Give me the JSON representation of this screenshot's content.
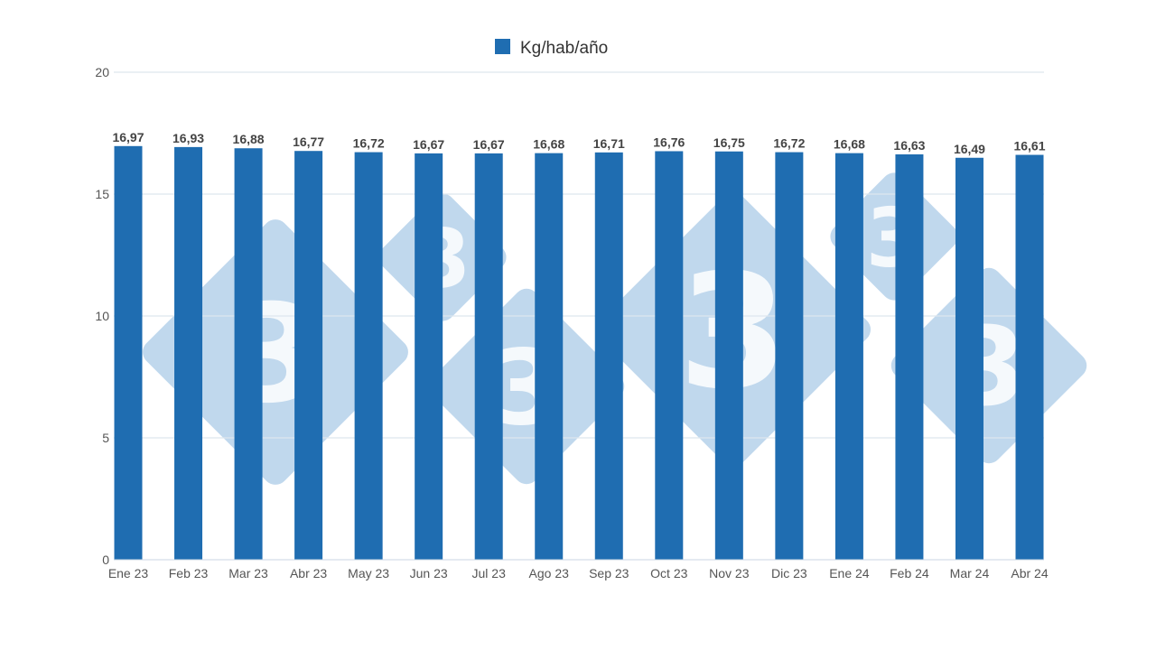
{
  "chart_data": {
    "type": "bar",
    "categories": [
      "Ene 23",
      "Feb 23",
      "Mar 23",
      "Abr 23",
      "May 23",
      "Jun 23",
      "Jul 23",
      "Ago 23",
      "Sep 23",
      "Oct 23",
      "Nov 23",
      "Dic 23",
      "Ene 24",
      "Feb 24",
      "Mar 24",
      "Abr 24"
    ],
    "series": [
      {
        "name": "Kg/hab/año",
        "values": [
          16.97,
          16.93,
          16.88,
          16.77,
          16.72,
          16.67,
          16.67,
          16.68,
          16.71,
          16.76,
          16.75,
          16.72,
          16.68,
          16.63,
          16.49,
          16.61
        ],
        "labels": [
          "16,97",
          "16,93",
          "16,88",
          "16,77",
          "16,72",
          "16,67",
          "16,67",
          "16,68",
          "16,71",
          "16,76",
          "16,75",
          "16,72",
          "16,68",
          "16,63",
          "16,49",
          "16,61"
        ],
        "color": "#1f6db1"
      }
    ],
    "ylim": [
      0,
      20
    ],
    "yticks": [
      {
        "value": 0,
        "label": "0"
      },
      {
        "value": 5,
        "label": "5"
      },
      {
        "value": 10,
        "label": "10"
      },
      {
        "value": 15,
        "label": "15"
      },
      {
        "value": 20,
        "label": "20"
      }
    ],
    "grid": true,
    "legend": "top-center",
    "gridline_color": "#dde6ee",
    "watermark_color": "#bdd6ec",
    "watermark_text": "3"
  }
}
